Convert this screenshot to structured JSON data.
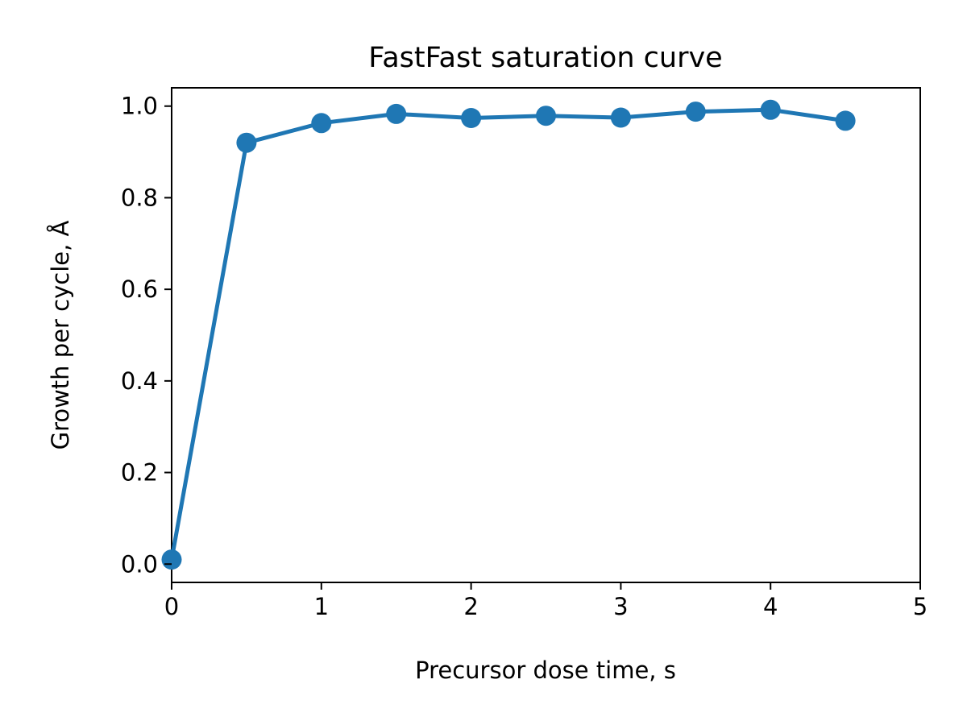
{
  "chart_data": {
    "type": "line",
    "title": "FastFast saturation curve",
    "xlabel": "Precursor dose time, s",
    "ylabel": "Growth per cycle, Å",
    "xlim": [
      0,
      5
    ],
    "ylim": [
      -0.04,
      1.04
    ],
    "x_ticks": [
      0,
      1,
      2,
      3,
      4,
      5
    ],
    "x_tick_labels": [
      "0",
      "1",
      "2",
      "3",
      "4",
      "5"
    ],
    "y_ticks": [
      0.0,
      0.2,
      0.4,
      0.6,
      0.8,
      1.0
    ],
    "y_tick_labels": [
      "0.0",
      "0.2",
      "0.4",
      "0.6",
      "0.8",
      "1.0"
    ],
    "grid": false,
    "series": [
      {
        "color": "#1f77b4",
        "marker": "circle",
        "x": [
          0.0,
          0.5,
          1.0,
          1.5,
          2.0,
          2.5,
          3.0,
          3.5,
          4.0,
          4.5
        ],
        "y": [
          0.01,
          0.92,
          0.963,
          0.983,
          0.974,
          0.979,
          0.975,
          0.988,
          0.992,
          0.968
        ]
      }
    ]
  }
}
